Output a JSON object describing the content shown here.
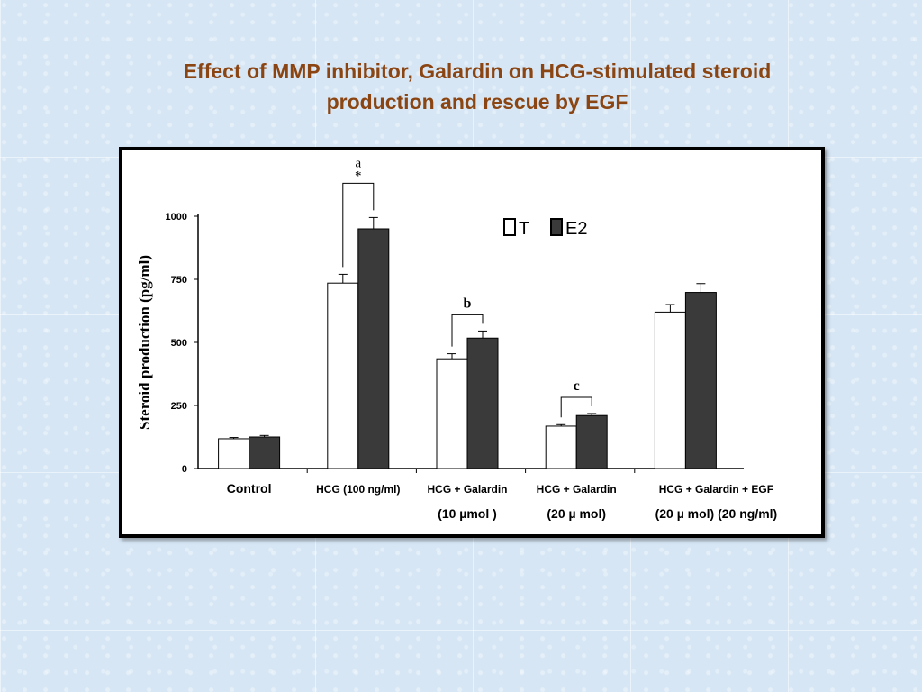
{
  "slide": {
    "title_line1": "Effect of MMP inhibitor, Galardin on HCG-stimulated steroid",
    "title_line2": "production and rescue by EGF"
  },
  "chart_data": {
    "type": "bar",
    "ylabel": "Steroid production (pg/ml)",
    "ylim": [
      0,
      1000
    ],
    "yticks": [
      "0",
      "250",
      "500",
      "750",
      "1000"
    ],
    "legend": {
      "position": "top-right",
      "entries": [
        "T",
        "E2"
      ]
    },
    "colors": {
      "T": "#ffffff",
      "E2": "#3a3a3a"
    },
    "grid": false,
    "categories": [
      {
        "line1": "Control",
        "line2": ""
      },
      {
        "line1": "HCG (100 ng/ml)",
        "line2": ""
      },
      {
        "line1": "HCG + Galardin",
        "line2": "(10  µmol )"
      },
      {
        "line1": "HCG + Galardin",
        "line2": "(20 µ mol)"
      },
      {
        "line1": "HCG + Galardin + EGF",
        "line2": "(20 µ mol) (20 ng/ml)"
      }
    ],
    "series": [
      {
        "name": "T",
        "values": [
          118,
          735,
          435,
          168,
          620
        ],
        "errors": [
          5,
          35,
          20,
          6,
          30
        ]
      },
      {
        "name": "E2",
        "values": [
          125,
          950,
          517,
          210,
          698
        ],
        "errors": [
          6,
          45,
          28,
          8,
          35
        ]
      }
    ],
    "annotations": [
      {
        "group": 1,
        "label": "a",
        "label2": "*"
      },
      {
        "group": 2,
        "label": "b"
      },
      {
        "group": 3,
        "label": "c"
      }
    ]
  }
}
